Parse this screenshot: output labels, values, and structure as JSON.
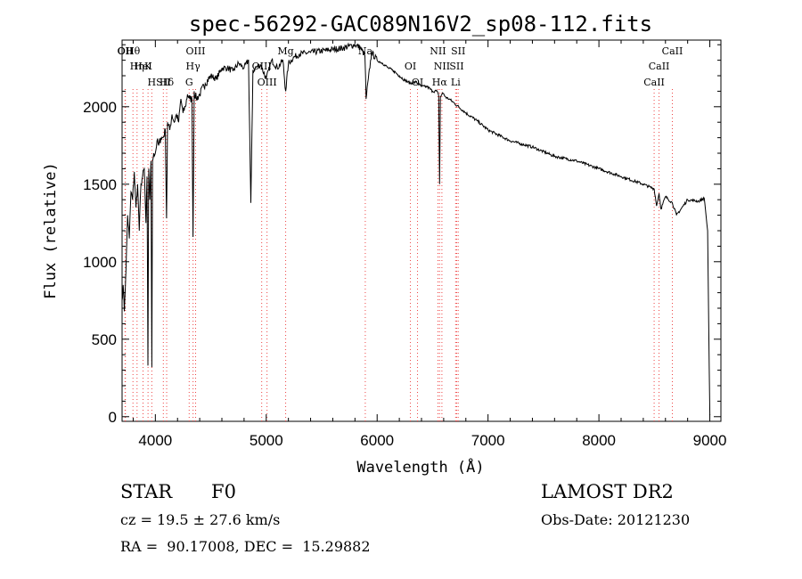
{
  "chart_data": {
    "type": "line",
    "title": "spec-56292-GAC089N16V2_sp08-112.fits",
    "xlabel": "Wavelength (Å)",
    "ylabel": "Flux (relative)",
    "xlim": [
      3700,
      9100
    ],
    "ylim": [
      -30,
      2430
    ],
    "x_ticks": [
      4000,
      5000,
      6000,
      7000,
      8000,
      9000
    ],
    "y_ticks": [
      0,
      500,
      1000,
      1500,
      2000
    ],
    "grid": false,
    "series": [
      {
        "x": [
          3700,
          3710,
          3720,
          3735,
          3750,
          3765,
          3780,
          3795,
          3810,
          3825,
          3840,
          3855,
          3870,
          3885,
          3900,
          3915,
          3925,
          3933,
          3940,
          3950,
          3960,
          3968,
          3975,
          3985,
          4000,
          4015,
          4030,
          4050,
          4070,
          4090,
          4101,
          4110,
          4130,
          4150,
          4170,
          4190,
          4210,
          4230,
          4250,
          4270,
          4290,
          4310,
          4330,
          4340,
          4350,
          4370,
          4400,
          4450,
          4500,
          4550,
          4600,
          4650,
          4700,
          4750,
          4800,
          4840,
          4861,
          4880,
          4900,
          4950,
          5000,
          5050,
          5100,
          5150,
          5175,
          5200,
          5250,
          5300,
          5400,
          5500,
          5600,
          5700,
          5800,
          5850,
          5890,
          5900,
          5950,
          6000,
          6050,
          6100,
          6150,
          6200,
          6250,
          6300,
          6350,
          6400,
          6450,
          6500,
          6540,
          6555,
          6563,
          6570,
          6590,
          6620,
          6650,
          6700,
          6800,
          6900,
          7000,
          7200,
          7400,
          7600,
          7800,
          8000,
          8200,
          8400,
          8498,
          8520,
          8542,
          8560,
          8600,
          8662,
          8700,
          8800,
          8900,
          8950,
          8980,
          9000
        ],
        "y": [
          750,
          850,
          680,
          950,
          1300,
          1150,
          1450,
          1400,
          1580,
          1350,
          1500,
          1200,
          1500,
          1550,
          1600,
          1250,
          1550,
          330,
          1600,
          1400,
          1650,
          320,
          1650,
          1700,
          1700,
          1780,
          1750,
          1800,
          1800,
          1850,
          1280,
          1900,
          1850,
          1950,
          1900,
          1950,
          1900,
          2050,
          1960,
          2000,
          2080,
          2050,
          2050,
          1160,
          2100,
          2050,
          2080,
          2150,
          2200,
          2180,
          2250,
          2250,
          2230,
          2280,
          2250,
          2300,
          1380,
          2230,
          2250,
          2270,
          2180,
          2300,
          2250,
          2300,
          2100,
          2280,
          2320,
          2340,
          2350,
          2360,
          2370,
          2380,
          2400,
          2380,
          2330,
          2050,
          2350,
          2300,
          2280,
          2250,
          2230,
          2200,
          2170,
          2150,
          2160,
          2130,
          2130,
          2100,
          2100,
          2070,
          1500,
          2060,
          2090,
          2060,
          2050,
          2020,
          1960,
          1910,
          1850,
          1780,
          1740,
          1680,
          1650,
          1600,
          1550,
          1500,
          1470,
          1360,
          1440,
          1340,
          1420,
          1380,
          1300,
          1400,
          1390,
          1410,
          1200,
          10
        ]
      }
    ],
    "lines": [
      {
        "label": "Hθ",
        "x": 3798
      },
      {
        "label": "K",
        "x": 3934
      },
      {
        "label": "Hδ",
        "x": 4102
      },
      {
        "label": "OII",
        "x": 3727
      },
      {
        "label": "HeI",
        "x": 3889
      },
      {
        "label": "SII",
        "x": 4072
      },
      {
        "label": "OII",
        "x": 3730
      },
      {
        "label": "Hη",
        "x": 3835
      },
      {
        "label": "H",
        "x": 3968
      },
      {
        "label": "OIII",
        "x": 4363
      },
      {
        "label": "Hγ",
        "x": 4340
      },
      {
        "label": "G",
        "x": 4305
      },
      {
        "label": "Mg",
        "x": 5175
      },
      {
        "label": "OIII",
        "x": 4959
      },
      {
        "label": "OIII",
        "x": 5007
      },
      {
        "label": "Na",
        "x": 5893
      },
      {
        "label": "OI",
        "x": 6300
      },
      {
        "label": "OI",
        "x": 6364
      },
      {
        "label": "NII",
        "x": 6548
      },
      {
        "label": "SII",
        "x": 6717
      },
      {
        "label": "Hα",
        "x": 6563
      },
      {
        "label": "SII",
        "x": 6731
      },
      {
        "label": "NII",
        "x": 6584
      },
      {
        "label": "Li",
        "x": 6708
      },
      {
        "label": "CaII",
        "x": 8662
      },
      {
        "label": "CaII",
        "x": 8542
      },
      {
        "label": "CaII",
        "x": 8498
      }
    ]
  },
  "info": {
    "object_type": "STAR",
    "subclass": "F0",
    "survey": "LAMOST DR2",
    "redshift": "cz = 19.5 ± 27.6 km/s",
    "obs_date": "Obs-Date: 20121230",
    "coords": "RA =  90.17008, DEC =  15.29882"
  }
}
